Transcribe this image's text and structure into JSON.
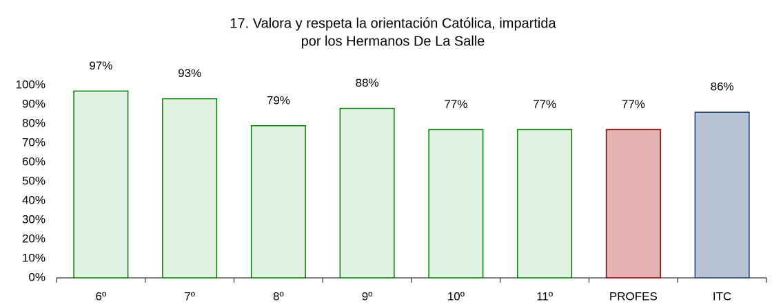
{
  "chart_data": {
    "type": "bar",
    "title": [
      "17. Valora y respeta la orientación Católica, impartida",
      "por los Hermanos De La Salle"
    ],
    "categories": [
      "6º",
      "7º",
      "8º",
      "9º",
      "10º",
      "11º",
      "PROFES",
      "ITC"
    ],
    "values": [
      97,
      93,
      79,
      88,
      77,
      77,
      77,
      86
    ],
    "value_labels": [
      "97%",
      "93%",
      "79%",
      "88%",
      "77%",
      "77%",
      "77%",
      "86%"
    ],
    "colors": [
      "#e3f3e3",
      "#e3f3e3",
      "#e3f3e3",
      "#e3f3e3",
      "#e3f3e3",
      "#e3f3e3",
      "#e6b3b3",
      "#b9c3d6"
    ],
    "border_colors": [
      "#008000",
      "#008000",
      "#008000",
      "#008000",
      "#008000",
      "#008000",
      "#8b0000",
      "#1f3a6e"
    ],
    "ylim": [
      0,
      100
    ],
    "yticks": [
      {
        "value": 0,
        "label": "0%"
      },
      {
        "value": 10,
        "label": "10%"
      },
      {
        "value": 20,
        "label": "20%"
      },
      {
        "value": 30,
        "label": "30%"
      },
      {
        "value": 40,
        "label": "40%"
      },
      {
        "value": 50,
        "label": "50%"
      },
      {
        "value": 60,
        "label": "60%"
      },
      {
        "value": 70,
        "label": "70%"
      },
      {
        "value": 80,
        "label": "80%"
      },
      {
        "value": 90,
        "label": "90%"
      },
      {
        "value": 100,
        "label": "100%"
      }
    ],
    "grid": false
  }
}
